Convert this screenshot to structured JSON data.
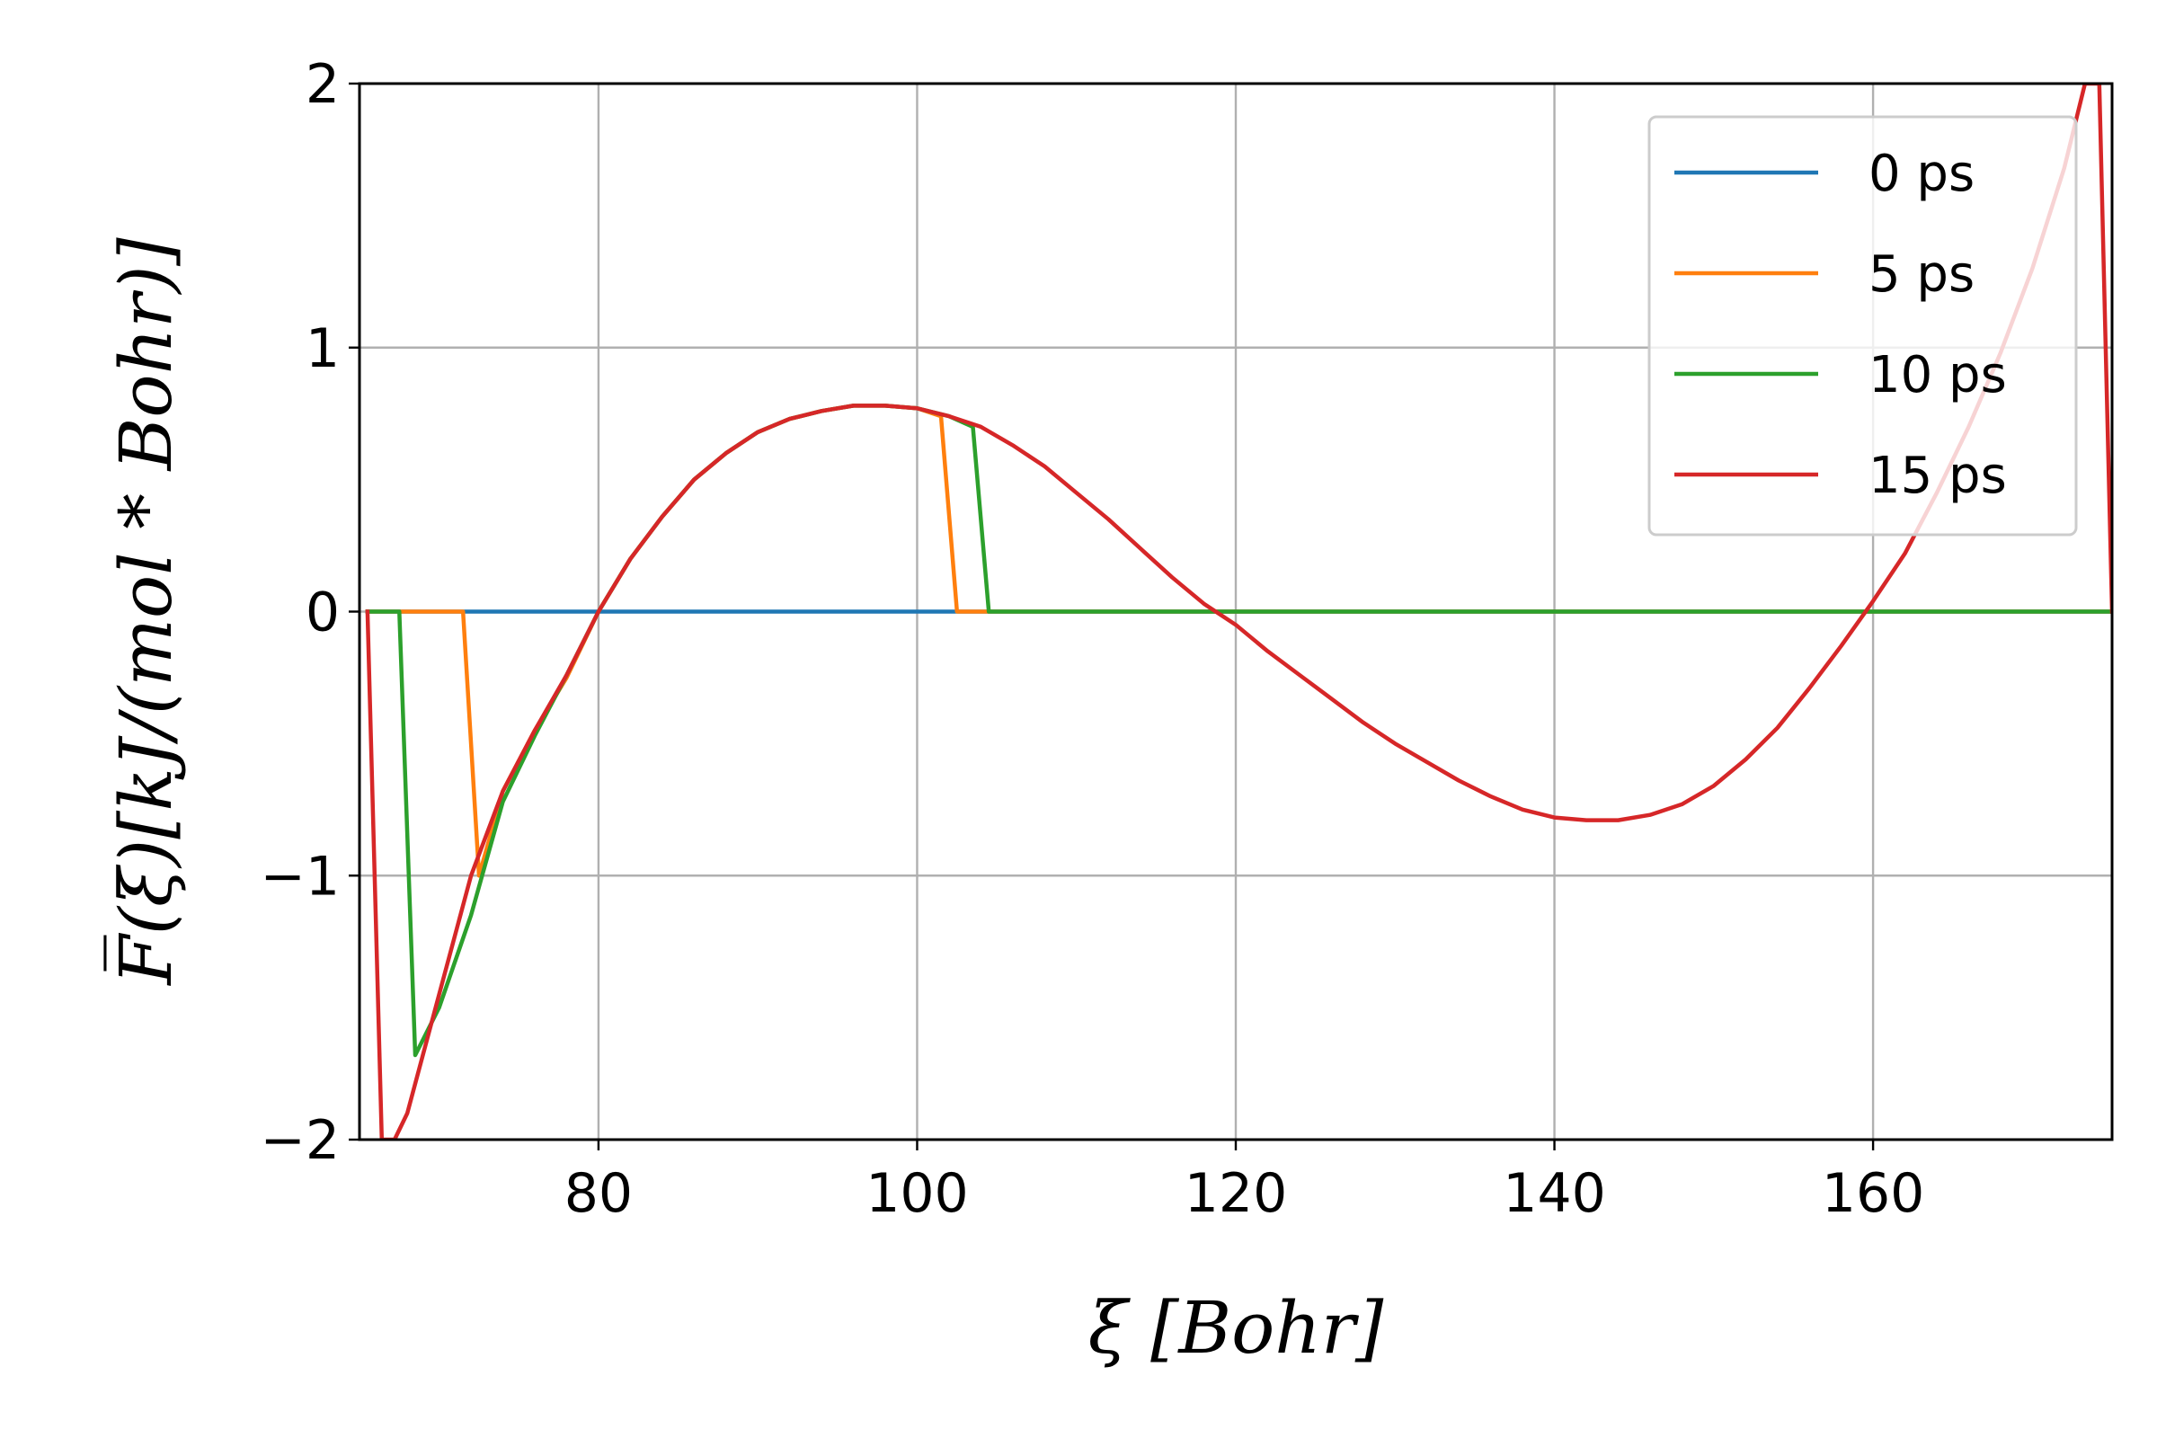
{
  "chart_data": {
    "type": "line",
    "title": "",
    "xlabel": "ξ [Bohr]",
    "ylabel": "F̅(ξ)[kJ/(mol * Bohr)]",
    "xlim": [
      65,
      175
    ],
    "ylim": [
      -2,
      2
    ],
    "xticks": [
      80,
      100,
      120,
      140,
      160
    ],
    "xtick_labels": [
      "80",
      "100",
      "120",
      "140",
      "160"
    ],
    "yticks": [
      -2,
      -1,
      0,
      1,
      2
    ],
    "ytick_labels": [
      "−2",
      "−1",
      "0",
      "1",
      "2"
    ],
    "grid": true,
    "legend_position": "top-right",
    "series": [
      {
        "name": "0 ps",
        "color": "#1f77b4",
        "x": [
          65.5,
          175
        ],
        "y": [
          0,
          0
        ]
      },
      {
        "name": "5 ps",
        "color": "#ff7f0e",
        "x": [
          65.5,
          71.5,
          72.5,
          74,
          76,
          78,
          80,
          82,
          84,
          86,
          88,
          90,
          92,
          94,
          96,
          98,
          100,
          101.5,
          102.5,
          175
        ],
        "y": [
          0,
          0,
          -1.0,
          -0.68,
          -0.45,
          -0.25,
          0.0,
          0.2,
          0.36,
          0.5,
          0.6,
          0.68,
          0.73,
          0.76,
          0.78,
          0.78,
          0.77,
          0.74,
          0,
          0
        ]
      },
      {
        "name": "10 ps",
        "color": "#2ca02c",
        "x": [
          65.5,
          67.5,
          68.5,
          70,
          72,
          74,
          76,
          78,
          80,
          82,
          84,
          86,
          88,
          90,
          92,
          94,
          96,
          98,
          100,
          102,
          103.5,
          104.5,
          175
        ],
        "y": [
          0,
          0,
          -1.68,
          -1.5,
          -1.15,
          -0.72,
          -0.47,
          -0.24,
          0.0,
          0.2,
          0.36,
          0.5,
          0.6,
          0.68,
          0.73,
          0.76,
          0.78,
          0.78,
          0.77,
          0.74,
          0.7,
          0,
          0
        ]
      },
      {
        "name": "15 ps",
        "color": "#d62728",
        "x": [
          65.5,
          66.4,
          67.2,
          68,
          70,
          72,
          74,
          76,
          78,
          80,
          82,
          84,
          86,
          88,
          90,
          92,
          94,
          96,
          98,
          100,
          102,
          104,
          106,
          108,
          110,
          112,
          114,
          116,
          118,
          120,
          122,
          124,
          126,
          128,
          130,
          132,
          134,
          136,
          138,
          140,
          142,
          143,
          144,
          146,
          148,
          150,
          152,
          154,
          156,
          158,
          160,
          162,
          164,
          166,
          168,
          170,
          172,
          173.3,
          174.2,
          175
        ],
        "y": [
          0,
          -2.0,
          -2.0,
          -1.9,
          -1.45,
          -1.0,
          -0.68,
          -0.45,
          -0.24,
          0.0,
          0.2,
          0.36,
          0.5,
          0.6,
          0.68,
          0.73,
          0.76,
          0.78,
          0.78,
          0.77,
          0.74,
          0.7,
          0.63,
          0.55,
          0.45,
          0.35,
          0.24,
          0.13,
          0.03,
          -0.05,
          -0.15,
          -0.24,
          -0.33,
          -0.42,
          -0.5,
          -0.57,
          -0.64,
          -0.7,
          -0.75,
          -0.78,
          -0.79,
          -0.79,
          -0.79,
          -0.77,
          -0.73,
          -0.66,
          -0.56,
          -0.44,
          -0.29,
          -0.13,
          0.04,
          0.22,
          0.45,
          0.7,
          0.98,
          1.3,
          1.68,
          2.0,
          2.0,
          0
        ]
      }
    ]
  }
}
